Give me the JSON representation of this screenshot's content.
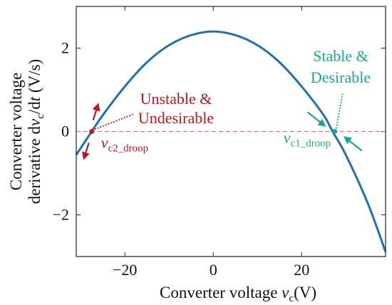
{
  "chart_data": {
    "type": "line",
    "title": "",
    "xlabel_parts": [
      "Converter voltage ",
      "v",
      "c",
      "(V)"
    ],
    "ylabel_line1": "Converter voltage",
    "ylabel_line2_parts": [
      "derivative d",
      "v",
      "c",
      "/d",
      "t",
      " (V/s)"
    ],
    "xlim": [
      -31,
      39
    ],
    "ylim": [
      -3,
      3
    ],
    "x_ticks": [
      -20,
      0,
      20
    ],
    "x_tick_labels": [
      "−20",
      "0",
      "20"
    ],
    "y_ticks": [
      -2,
      0,
      2
    ],
    "y_tick_labels": [
      "−2",
      "0",
      "2"
    ],
    "grid": false,
    "series": [
      {
        "x": [
          -31,
          -28,
          -25,
          -20,
          -15,
          -10,
          -5,
          0,
          5,
          10,
          15,
          20,
          25,
          27,
          30,
          35,
          39
        ],
        "y": [
          -0.56,
          -0.08,
          0.39,
          1.08,
          1.66,
          2.07,
          2.31,
          2.4,
          2.31,
          2.07,
          1.66,
          1.08,
          0.39,
          0.0,
          -0.56,
          -1.73,
          -2.89
        ],
        "color": "#1f6fb8"
      }
    ],
    "reference_line": {
      "y": 0,
      "color": "#e8707a",
      "style": "dashed"
    },
    "equilibria": [
      {
        "id": "unstable",
        "x": -27.5,
        "y": 0,
        "color": "#c0141e",
        "label_lines": [
          "Unstable &",
          "Undesirable"
        ],
        "point_label_parts": [
          "v",
          "c2_droop"
        ]
      },
      {
        "id": "stable",
        "x": 27.5,
        "y": 0,
        "color": "#1aa88a",
        "label_lines": [
          "Stable &",
          "Desirable"
        ],
        "point_label_parts": [
          "v",
          "c1_droop"
        ]
      }
    ],
    "colors": {
      "curve": "#1f6fb8",
      "zero_line": "#e8707a",
      "unstable": "#c0141e",
      "stable": "#1aa88a",
      "axes": "#222222"
    }
  }
}
